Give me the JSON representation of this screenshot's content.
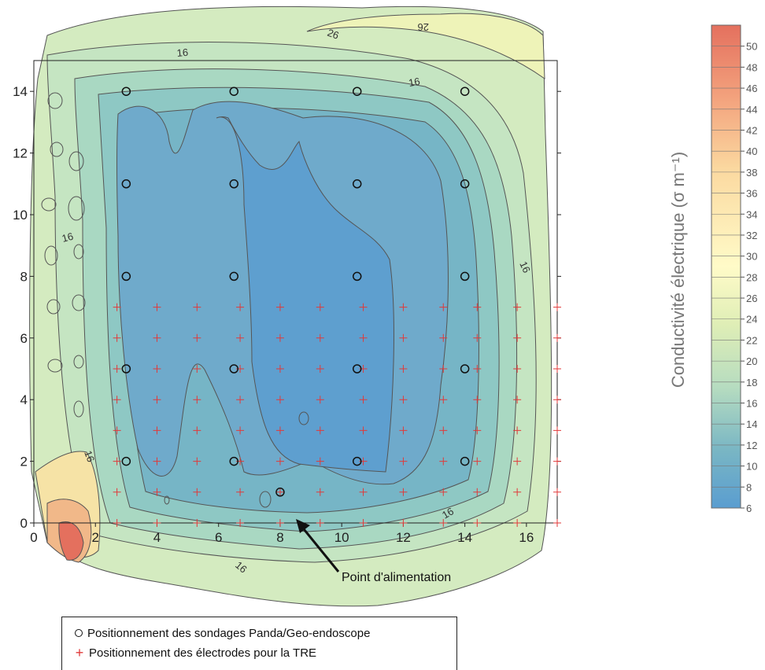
{
  "chart_data": {
    "type": "heatmap",
    "subtype": "contour map",
    "xlim": [
      0,
      17
    ],
    "ylim": [
      0,
      15
    ],
    "x_ticks": [
      0,
      2,
      4,
      6,
      8,
      10,
      12,
      14,
      16
    ],
    "y_ticks": [
      0,
      2,
      4,
      6,
      8,
      10,
      12,
      14
    ],
    "colorbar": {
      "label": "Conductivité électrique (σ m⁻¹)",
      "ticks": [
        6,
        8,
        10,
        12,
        14,
        16,
        18,
        20,
        22,
        24,
        26,
        28,
        30,
        32,
        34,
        36,
        38,
        40,
        42,
        44,
        46,
        48,
        50
      ],
      "range": [
        6,
        52
      ],
      "colors": {
        "low": "#5a9dd0",
        "mid": "#fffbc8",
        "high": "#e4705e"
      }
    },
    "contour_labels": [
      "16",
      "16",
      "16",
      "16",
      "16",
      "16",
      "16",
      "26",
      "26",
      "16"
    ],
    "sondages": [
      [
        3,
        14
      ],
      [
        6.5,
        14
      ],
      [
        10.5,
        14
      ],
      [
        14,
        14
      ],
      [
        3,
        11
      ],
      [
        6.5,
        11
      ],
      [
        10.5,
        11
      ],
      [
        14,
        11
      ],
      [
        3,
        8
      ],
      [
        6.5,
        8
      ],
      [
        10.5,
        8
      ],
      [
        14,
        8
      ],
      [
        3,
        5
      ],
      [
        6.5,
        5
      ],
      [
        10.5,
        5
      ],
      [
        14,
        5
      ],
      [
        3,
        2
      ],
      [
        6.5,
        2
      ],
      [
        10.5,
        2
      ],
      [
        14,
        2
      ],
      [
        8,
        1
      ]
    ],
    "electrodes": {
      "x": [
        2.7,
        4,
        5.3,
        6.7,
        8,
        9.3,
        10.7,
        12,
        13.3,
        14.4,
        15.7,
        17
      ],
      "y": [
        0,
        1,
        2,
        3,
        4,
        5,
        6,
        7
      ]
    },
    "annotation": {
      "text": "Point d'alimentation",
      "target": [
        8.5,
        0.1
      ]
    },
    "legend": [
      {
        "marker": "circle",
        "label": "Positionnement des sondages Panda/Geo-endoscope"
      },
      {
        "marker": "plus",
        "label": "Positionnement des électrodes pour la TRE"
      }
    ]
  }
}
